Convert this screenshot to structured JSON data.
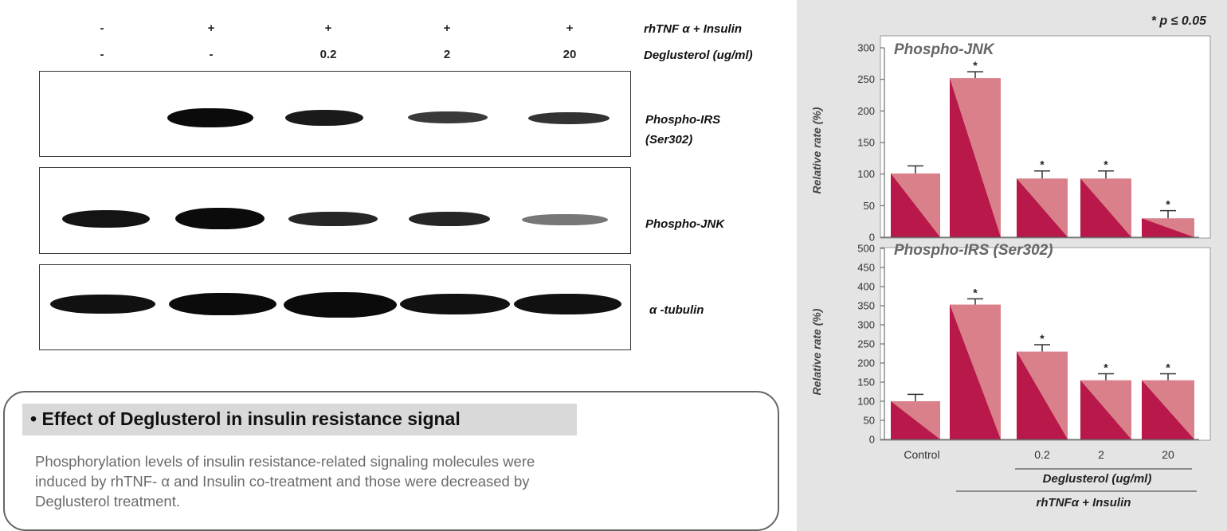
{
  "blot_header": {
    "row1": [
      "-",
      "+",
      "+",
      "+",
      "+"
    ],
    "row2": [
      "-",
      "-",
      "0.2",
      "2",
      "20"
    ],
    "row1_label": "rhTNF α + Insulin",
    "row2_label": "Deglusterol (ug/ml)"
  },
  "blots": [
    {
      "label_line1": "Phospho-IRS",
      "label_line2": "(Ser302)",
      "intensity": [
        0,
        1.0,
        0.75,
        0.45,
        0.45
      ]
    },
    {
      "label_line1": "Phospho-JNK",
      "label_line2": "",
      "intensity": [
        0.85,
        1.0,
        0.7,
        0.7,
        0.35
      ]
    },
    {
      "label_line1": "α -tubulin",
      "label_line2": "",
      "intensity": [
        0.9,
        0.95,
        1.0,
        0.9,
        0.9
      ]
    }
  ],
  "infobox": {
    "bullet": "•",
    "heading": "Effect of Deglusterol in insulin resistance signal",
    "line1": "Phosphorylation levels of insulin resistance-related signaling molecules were",
    "line2": "induced by rhTNF- α  and Insulin co-treatment and those were decreased by",
    "line3": "Deglusterol treatment."
  },
  "significance_note": "* p ≤ 0.05",
  "colors": {
    "bar_dark": "#b8184a",
    "bar_light": "#d9808a",
    "panel_bg": "#e4e4e4"
  },
  "chart_data": [
    {
      "type": "bar",
      "title": "Phospho-JNK",
      "ylabel": "Relative rate (%)",
      "ylim": [
        0,
        300
      ],
      "yticks": [
        "0",
        "50",
        "100",
        "150",
        "200",
        "250",
        "300"
      ],
      "categories": [
        "Control",
        "",
        "0.2",
        "2",
        "20"
      ],
      "values": [
        101,
        252,
        93,
        93,
        30
      ],
      "errors": [
        12,
        10,
        12,
        12,
        12
      ],
      "significant": [
        "",
        "*",
        "*",
        "*",
        "*"
      ]
    },
    {
      "type": "bar",
      "title": "Phospho-IRS (Ser302)",
      "ylabel": "Relative rate (%)",
      "ylim": [
        0,
        500
      ],
      "yticks": [
        "0",
        "50",
        "100",
        "150",
        "200",
        "250",
        "300",
        "350",
        "400",
        "450",
        "500"
      ],
      "categories": [
        "Control",
        "",
        "0.2",
        "2",
        "20"
      ],
      "values": [
        100,
        353,
        230,
        155,
        155
      ],
      "errors": [
        18,
        15,
        18,
        17,
        17
      ],
      "significant": [
        "",
        "*",
        "*",
        "*",
        "*"
      ],
      "xgroup_labels": {
        "inner": "Deglusterol (ug/ml)",
        "outer": "rhTNFα + Insulin"
      }
    }
  ]
}
